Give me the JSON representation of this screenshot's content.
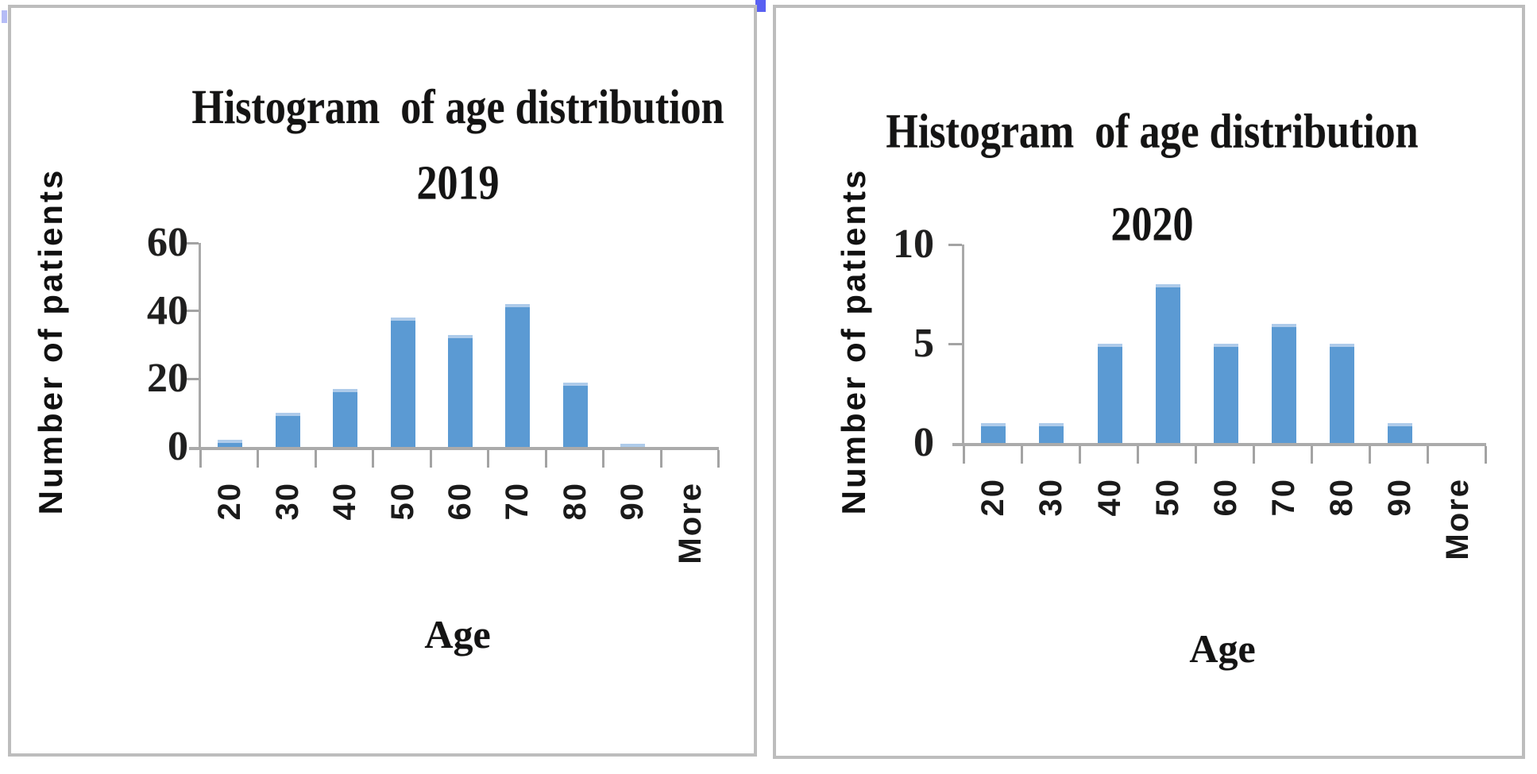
{
  "window": {
    "background": "#ffffff",
    "panel_border_color": "#bdbdbd"
  },
  "decorations": {
    "left_edge_mark_color": "#b5bcf6",
    "top_divider_mark_color": "#5960f2"
  },
  "chart_data": [
    {
      "type": "bar",
      "title": "Histogram of age distribution 2019",
      "title_line1": "Histogram  of age distribution",
      "title_line2": "2019",
      "ylabel": "Number of patients",
      "xlabel": "Age",
      "categories": [
        "20",
        "30",
        "40",
        "50",
        "60",
        "70",
        "80",
        "90",
        "More"
      ],
      "values": [
        2,
        10,
        17,
        38,
        33,
        42,
        19,
        1,
        0
      ],
      "yticks": [
        0,
        20,
        40,
        60
      ],
      "ylim": [
        0,
        60
      ],
      "bar_color": "#5b9ad3",
      "bar_top_color": "#aecbea",
      "axis_color": "#a9a9a9",
      "grid": false,
      "legend_position": "none"
    },
    {
      "type": "bar",
      "title": "Histogram of age distribution 2020",
      "title_line1": "Histogram  of age distribution",
      "title_line2": "2020",
      "ylabel": "Number of patients",
      "xlabel": "Age",
      "categories": [
        "20",
        "30",
        "40",
        "50",
        "60",
        "70",
        "80",
        "90",
        "More"
      ],
      "values": [
        1,
        1,
        5,
        8,
        5,
        6,
        5,
        1,
        0
      ],
      "yticks": [
        0,
        5,
        10
      ],
      "ylim": [
        0,
        10
      ],
      "bar_color": "#5b9ad3",
      "bar_top_color": "#aecbea",
      "axis_color": "#a9a9a9",
      "grid": false,
      "legend_position": "none"
    }
  ]
}
